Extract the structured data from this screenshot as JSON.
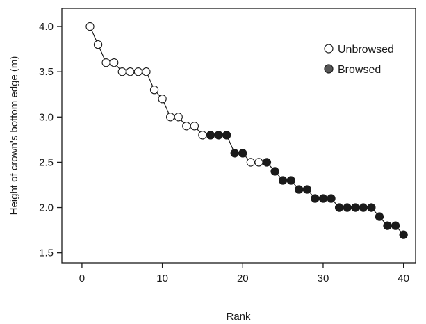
{
  "chart_data": {
    "type": "scatter",
    "title": "",
    "xlabel": "Rank",
    "ylabel": "Height of crown's bottom edge (m)",
    "xlim": [
      -2.5,
      41.5
    ],
    "ylim": [
      1.39,
      4.2
    ],
    "xticks": [
      0,
      10,
      20,
      30,
      40
    ],
    "xtick_labels": [
      "0",
      "10",
      "20",
      "30",
      "40"
    ],
    "yticks": [
      1.5,
      2.0,
      2.5,
      3.0,
      3.5,
      4.0
    ],
    "ytick_labels": [
      "1.5",
      "2.0",
      "2.5",
      "3.0",
      "3.5",
      "4.0"
    ],
    "grid": false,
    "legend_position": "top-right",
    "connected_line": true,
    "colors": {
      "line": "#1a1a1a",
      "unbrowsed_fill": "#ffffff",
      "browsed_fill": "#1a1a1a",
      "legend_browsed_fill": "#555555"
    },
    "series": [
      {
        "name": "Unbrowsed",
        "x": [
          1,
          2,
          3,
          4,
          5,
          6,
          7,
          8,
          9,
          10,
          11,
          12,
          13,
          14,
          15,
          21,
          22
        ],
        "y": [
          4.0,
          3.8,
          3.6,
          3.6,
          3.5,
          3.5,
          3.5,
          3.5,
          3.3,
          3.2,
          3.0,
          3.0,
          2.9,
          2.9,
          2.8,
          2.5,
          2.5
        ]
      },
      {
        "name": "Browsed",
        "x": [
          16,
          17,
          18,
          19,
          20,
          23,
          24,
          25,
          26,
          27,
          28,
          29,
          30,
          31,
          32,
          33,
          34,
          35,
          36,
          37,
          38,
          39,
          40
        ],
        "y": [
          2.8,
          2.8,
          2.8,
          2.6,
          2.6,
          2.5,
          2.4,
          2.3,
          2.3,
          2.2,
          2.2,
          2.1,
          2.1,
          2.1,
          2.0,
          2.0,
          2.0,
          2.0,
          2.0,
          1.9,
          1.8,
          1.8,
          1.7
        ]
      }
    ]
  }
}
